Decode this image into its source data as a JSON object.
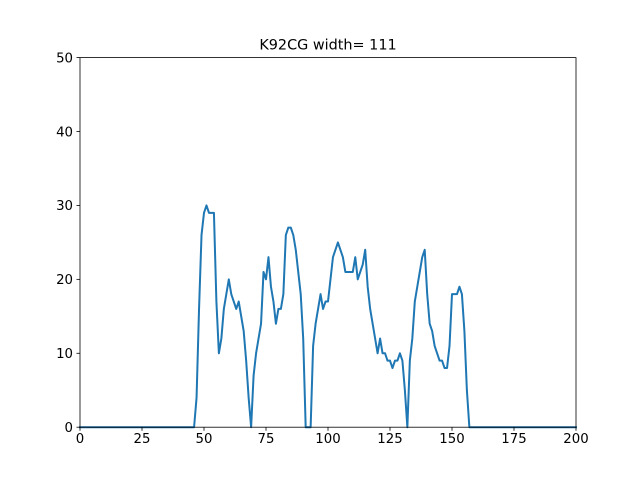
{
  "chart_data": {
    "type": "line",
    "title": "K92CG width= 111",
    "xlabel": "",
    "ylabel": "",
    "xlim": [
      0,
      200
    ],
    "ylim": [
      0,
      50
    ],
    "xticks": [
      0,
      25,
      50,
      75,
      100,
      125,
      150,
      175,
      200
    ],
    "yticks": [
      0,
      10,
      20,
      30,
      40,
      50
    ],
    "grid": false,
    "legend": "none",
    "series": [
      {
        "color": "#1f77b4",
        "x": [
          0,
          1,
          2,
          3,
          4,
          5,
          6,
          7,
          8,
          9,
          10,
          11,
          12,
          13,
          14,
          15,
          16,
          17,
          18,
          19,
          20,
          21,
          22,
          23,
          24,
          25,
          26,
          27,
          28,
          29,
          30,
          31,
          32,
          33,
          34,
          35,
          36,
          37,
          38,
          39,
          40,
          41,
          42,
          43,
          44,
          45,
          46,
          47,
          48,
          49,
          50,
          51,
          52,
          53,
          54,
          55,
          56,
          57,
          58,
          59,
          60,
          61,
          62,
          63,
          64,
          65,
          66,
          67,
          68,
          69,
          70,
          71,
          72,
          73,
          74,
          75,
          76,
          77,
          78,
          79,
          80,
          81,
          82,
          83,
          84,
          85,
          86,
          87,
          88,
          89,
          90,
          91,
          92,
          93,
          94,
          95,
          96,
          97,
          98,
          99,
          100,
          101,
          102,
          103,
          104,
          105,
          106,
          107,
          108,
          109,
          110,
          111,
          112,
          113,
          114,
          115,
          116,
          117,
          118,
          119,
          120,
          121,
          122,
          123,
          124,
          125,
          126,
          127,
          128,
          129,
          130,
          131,
          132,
          133,
          134,
          135,
          136,
          137,
          138,
          139,
          140,
          141,
          142,
          143,
          144,
          145,
          146,
          147,
          148,
          149,
          150,
          151,
          152,
          153,
          154,
          155,
          156,
          157,
          158,
          159,
          160,
          161,
          162,
          163,
          164,
          165,
          166,
          167,
          168,
          169,
          170,
          171,
          172,
          173,
          174,
          175,
          176,
          177,
          178,
          179,
          180,
          181,
          182,
          183,
          184,
          185,
          186,
          187,
          188,
          189,
          190,
          191,
          192,
          193,
          194,
          195,
          196,
          197,
          198,
          199,
          200
        ],
        "y": [
          0,
          0,
          0,
          0,
          0,
          0,
          0,
          0,
          0,
          0,
          0,
          0,
          0,
          0,
          0,
          0,
          0,
          0,
          0,
          0,
          0,
          0,
          0,
          0,
          0,
          0,
          0,
          0,
          0,
          0,
          0,
          0,
          0,
          0,
          0,
          0,
          0,
          0,
          0,
          0,
          0,
          0,
          0,
          0,
          0,
          0,
          0,
          4,
          16,
          26,
          29,
          30,
          29,
          29,
          29,
          17,
          10,
          12,
          16,
          18,
          20,
          18,
          17,
          16,
          17,
          15,
          13,
          9,
          4,
          0,
          7,
          10,
          12,
          14,
          21,
          20,
          23,
          19,
          17,
          14,
          16,
          16,
          18,
          26,
          27,
          27,
          26,
          24,
          21,
          18,
          12,
          0,
          0,
          0,
          11,
          14,
          16,
          18,
          16,
          17,
          17,
          20,
          23,
          24,
          25,
          24,
          23,
          21,
          21,
          21,
          21,
          23,
          20,
          21,
          22,
          24,
          19,
          16,
          14,
          12,
          10,
          12,
          10,
          10,
          9,
          9,
          8,
          9,
          9,
          10,
          9,
          5,
          0,
          9,
          12,
          17,
          19,
          21,
          23,
          24,
          18,
          14,
          13,
          11,
          10,
          9,
          9,
          8,
          8,
          11,
          18,
          18,
          18,
          19,
          18,
          13,
          5,
          0,
          0,
          0,
          0,
          0,
          0,
          0,
          0,
          0,
          0,
          0,
          0,
          0,
          0,
          0,
          0,
          0,
          0,
          0,
          0,
          0,
          0,
          0,
          0,
          0,
          0,
          0,
          0,
          0,
          0,
          0,
          0,
          0,
          0,
          0,
          0,
          0,
          0,
          0,
          0,
          0,
          0,
          0,
          0
        ]
      }
    ]
  }
}
